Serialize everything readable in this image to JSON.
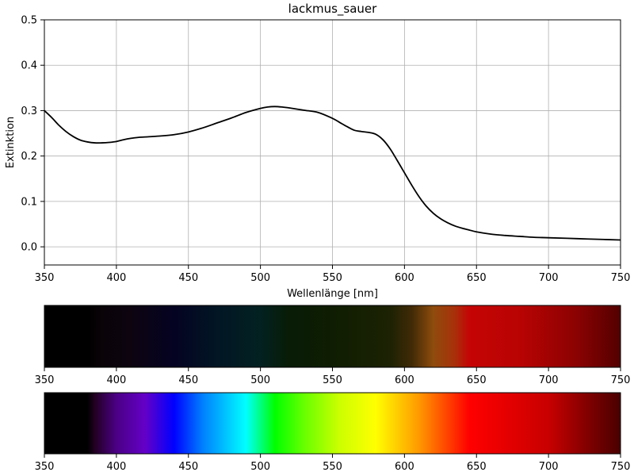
{
  "chart_data": [
    {
      "type": "line",
      "title": "lackmus_sauer",
      "xlabel": "Wellenlänge [nm]",
      "ylabel": "Extinktion",
      "xlim": [
        350,
        750
      ],
      "ylim": [
        -0.04,
        0.5
      ],
      "grid": true,
      "x_ticks": [
        350,
        400,
        450,
        500,
        550,
        600,
        650,
        700,
        750
      ],
      "y_ticks": [
        0.0,
        0.1,
        0.2,
        0.3,
        0.4,
        0.5
      ],
      "line_color": "#000000",
      "series": [
        {
          "x": [
            350,
            355,
            360,
            365,
            370,
            375,
            380,
            385,
            390,
            395,
            400,
            405,
            410,
            415,
            420,
            430,
            440,
            450,
            460,
            470,
            480,
            490,
            500,
            505,
            510,
            515,
            520,
            530,
            540,
            550,
            555,
            560,
            565,
            570,
            575,
            580,
            585,
            590,
            595,
            600,
            605,
            610,
            615,
            620,
            625,
            630,
            635,
            640,
            645,
            650,
            660,
            670,
            680,
            690,
            700,
            720,
            740,
            750
          ],
          "y": [
            0.3,
            0.285,
            0.268,
            0.254,
            0.243,
            0.235,
            0.231,
            0.229,
            0.229,
            0.23,
            0.232,
            0.236,
            0.239,
            0.241,
            0.242,
            0.244,
            0.247,
            0.253,
            0.262,
            0.273,
            0.284,
            0.296,
            0.305,
            0.308,
            0.309,
            0.308,
            0.306,
            0.301,
            0.296,
            0.283,
            0.274,
            0.265,
            0.257,
            0.254,
            0.252,
            0.248,
            0.236,
            0.216,
            0.19,
            0.163,
            0.136,
            0.111,
            0.09,
            0.074,
            0.062,
            0.053,
            0.046,
            0.041,
            0.037,
            0.033,
            0.028,
            0.025,
            0.023,
            0.021,
            0.02,
            0.018,
            0.016,
            0.015
          ]
        }
      ]
    },
    {
      "type": "heatmap",
      "title": "",
      "xlim": [
        350,
        750
      ],
      "x_ticks": [
        350,
        400,
        450,
        500,
        550,
        600,
        650,
        700,
        750
      ],
      "color_stops": [
        {
          "x": 350,
          "color": "#000000"
        },
        {
          "x": 380,
          "color": "#000000"
        },
        {
          "x": 390,
          "color": "#0a0308"
        },
        {
          "x": 410,
          "color": "#0d0410"
        },
        {
          "x": 440,
          "color": "#040322"
        },
        {
          "x": 470,
          "color": "#021624"
        },
        {
          "x": 500,
          "color": "#032121"
        },
        {
          "x": 520,
          "color": "#081c06"
        },
        {
          "x": 550,
          "color": "#0f1d02"
        },
        {
          "x": 590,
          "color": "#1c2203"
        },
        {
          "x": 605,
          "color": "#402a06"
        },
        {
          "x": 620,
          "color": "#8e4c0d"
        },
        {
          "x": 635,
          "color": "#a8300a"
        },
        {
          "x": 645,
          "color": "#c50404"
        },
        {
          "x": 680,
          "color": "#b90303"
        },
        {
          "x": 720,
          "color": "#8a0202"
        },
        {
          "x": 750,
          "color": "#530000"
        }
      ]
    },
    {
      "type": "heatmap",
      "title": "",
      "xlim": [
        350,
        750
      ],
      "x_ticks": [
        350,
        400,
        450,
        500,
        550,
        600,
        650,
        700,
        750
      ],
      "color_stops": [
        {
          "x": 350,
          "color": "#000000"
        },
        {
          "x": 380,
          "color": "#000000"
        },
        {
          "x": 385,
          "color": "#220022"
        },
        {
          "x": 400,
          "color": "#4b0085"
        },
        {
          "x": 420,
          "color": "#6400c8"
        },
        {
          "x": 440,
          "color": "#0000ff"
        },
        {
          "x": 460,
          "color": "#0080ff"
        },
        {
          "x": 490,
          "color": "#00ffff"
        },
        {
          "x": 510,
          "color": "#00ff00"
        },
        {
          "x": 530,
          "color": "#66ff00"
        },
        {
          "x": 555,
          "color": "#ccff00"
        },
        {
          "x": 580,
          "color": "#ffff00"
        },
        {
          "x": 610,
          "color": "#ff9900"
        },
        {
          "x": 645,
          "color": "#ff0000"
        },
        {
          "x": 700,
          "color": "#c80000"
        },
        {
          "x": 730,
          "color": "#7a0000"
        },
        {
          "x": 750,
          "color": "#4a0000"
        }
      ]
    }
  ]
}
